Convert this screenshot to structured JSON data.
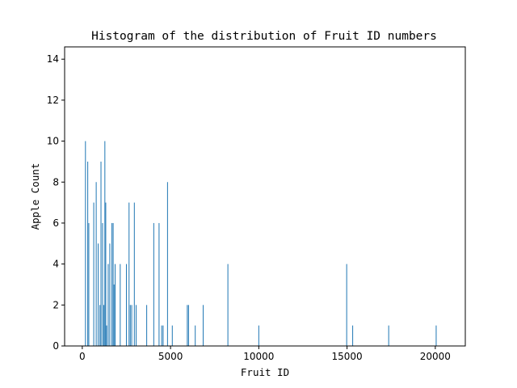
{
  "chart_data": {
    "type": "bar",
    "title": "Histogram of the distribution of Fruit ID numbers",
    "xlabel": "Fruit ID",
    "ylabel": "Apple Count",
    "xlim": [
      -1000,
      21700
    ],
    "ylim": [
      0,
      14.6
    ],
    "xticks": [
      0,
      5000,
      10000,
      15000,
      20000
    ],
    "yticks": [
      0,
      2,
      4,
      6,
      8,
      10,
      12,
      14
    ],
    "grid": false,
    "legend": "none",
    "bar_color": "#1f77b4",
    "bar_width": 45,
    "x": [
      180,
      310,
      370,
      650,
      790,
      900,
      1000,
      1060,
      1150,
      1220,
      1280,
      1330,
      1380,
      1470,
      1560,
      1680,
      1750,
      1800,
      1860,
      2150,
      2500,
      2650,
      2720,
      2800,
      2950,
      3050,
      3650,
      4050,
      4350,
      4500,
      4580,
      4830,
      5100,
      5950,
      6020,
      6400,
      6850,
      8250,
      10000,
      14980,
      15320,
      17360,
      20050
    ],
    "values": [
      10,
      9,
      6,
      7,
      8,
      5,
      2,
      9,
      6,
      2,
      10,
      7,
      1,
      4,
      5,
      6,
      6,
      3,
      4,
      4,
      4,
      7,
      2,
      2,
      7,
      2,
      2,
      6,
      6,
      1,
      1,
      8,
      1,
      2,
      2,
      1,
      2,
      4,
      1,
      4,
      1,
      1,
      1
    ]
  }
}
